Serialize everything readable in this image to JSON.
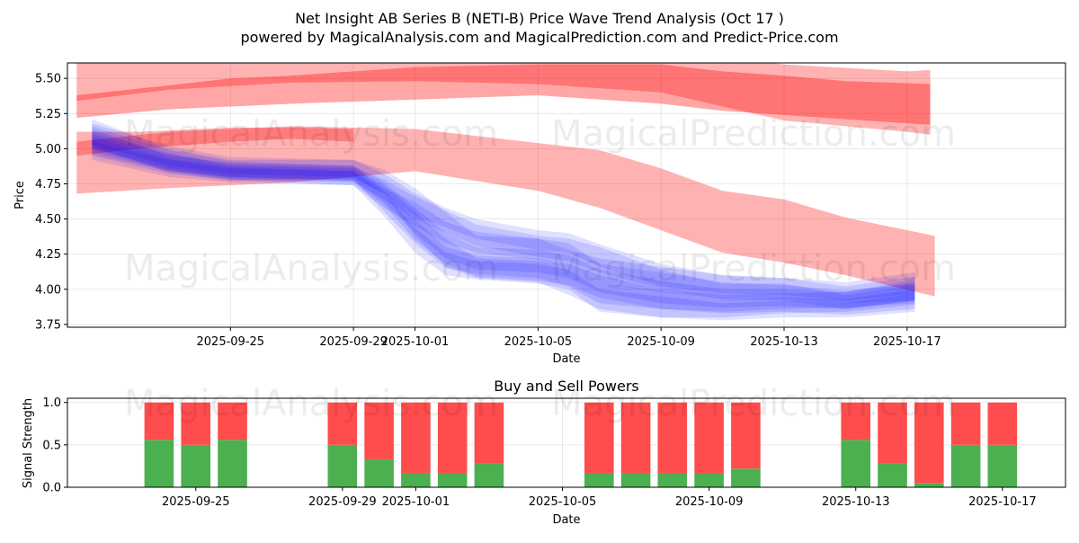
{
  "title_line1": "Net Insight AB Series B (NETI-B) Price Wave Trend Analysis (Oct 17 )",
  "title_line2": "powered by MagicalAnalysis.com and MagicalPrediction.com and Predict-Price.com",
  "watermarks": [
    "MagicalAnalysis.com",
    "MagicalPrediction.com"
  ],
  "colors": {
    "red_band": "#ff0000",
    "blue_band": "#0000ff",
    "buy": "#4caf50",
    "sell": "#ff4c4c"
  },
  "chart_data": [
    {
      "type": "area",
      "title": "",
      "xlabel": "Date",
      "ylabel": "Price",
      "x_day_range": [
        -11.3,
        21.15
      ],
      "ylim": [
        3.73,
        5.61
      ],
      "x_ticks": [
        {
          "day": -6,
          "label": "2025-09-25"
        },
        {
          "day": -2,
          "label": "2025-09-29"
        },
        {
          "day": 0,
          "label": "2025-10-01"
        },
        {
          "day": 4,
          "label": "2025-10-05"
        },
        {
          "day": 8,
          "label": "2025-10-09"
        },
        {
          "day": 12,
          "label": "2025-10-13"
        },
        {
          "day": 16,
          "label": "2025-10-17"
        }
      ],
      "y_ticks": [
        {
          "value": 3.75,
          "label": "3.75"
        },
        {
          "value": 4.0,
          "label": "4.00"
        },
        {
          "value": 4.25,
          "label": "4.25"
        },
        {
          "value": 4.5,
          "label": "4.50"
        },
        {
          "value": 4.75,
          "label": "4.75"
        },
        {
          "value": 5.0,
          "label": "5.00"
        },
        {
          "value": 5.25,
          "label": "5.25"
        },
        {
          "value": 5.5,
          "label": "5.50"
        }
      ],
      "red_bands": [
        {
          "opacity": 0.3,
          "points": [
            [
              -11.0,
              5.62,
              5.34
            ],
            [
              -8,
              5.61,
              5.42
            ],
            [
              -4,
              5.68,
              5.47
            ],
            [
              0,
              5.7,
              5.48
            ],
            [
              4,
              5.72,
              5.46
            ],
            [
              8,
              5.7,
              5.4
            ],
            [
              12,
              5.6,
              5.2
            ],
            [
              16,
              5.55,
              5.12
            ],
            [
              16.75,
              5.56,
              5.1
            ]
          ]
        },
        {
          "opacity": 0.3,
          "points": [
            [
              -11.0,
              5.05,
              4.68
            ],
            [
              -8,
              5.12,
              4.72
            ],
            [
              -4,
              5.16,
              4.76
            ],
            [
              0,
              5.14,
              4.84
            ],
            [
              4,
              5.04,
              4.7
            ],
            [
              6,
              4.99,
              4.58
            ],
            [
              8,
              4.86,
              4.42
            ],
            [
              10,
              4.7,
              4.26
            ],
            [
              12,
              4.64,
              4.19
            ],
            [
              14,
              4.51,
              4.1
            ],
            [
              16.9,
              4.38,
              3.95
            ]
          ]
        },
        {
          "opacity": 0.35,
          "points": [
            [
              -11.0,
              5.38,
              5.22
            ],
            [
              -8,
              5.45,
              5.28
            ],
            [
              -6,
              5.5,
              5.3
            ],
            [
              -4,
              5.52,
              5.32
            ],
            [
              0,
              5.58,
              5.35
            ],
            [
              4,
              5.6,
              5.38
            ],
            [
              8,
              5.6,
              5.32
            ],
            [
              10,
              5.55,
              5.27
            ],
            [
              12,
              5.52,
              5.24
            ],
            [
              14,
              5.48,
              5.21
            ],
            [
              16.75,
              5.46,
              5.17
            ]
          ]
        },
        {
          "opacity": 0.3,
          "points": [
            [
              -11.0,
              5.12,
              4.95
            ],
            [
              -9,
              5.12,
              5.0
            ],
            [
              -6,
              5.15,
              5.05
            ],
            [
              -4,
              5.15,
              5.07
            ],
            [
              -2,
              5.14,
              5.05
            ]
          ]
        }
      ],
      "blue_bands": [
        {
          "opacity": 0.12,
          "points": [
            [
              -10.5,
              5.21,
              5.02
            ],
            [
              -8,
              5.0,
              4.83
            ],
            [
              -6,
              4.92,
              4.77
            ],
            [
              -2,
              4.92,
              4.79
            ],
            [
              -1,
              4.85,
              4.68
            ],
            [
              0,
              4.72,
              4.38
            ],
            [
              1,
              4.55,
              4.16
            ],
            [
              2,
              4.38,
              4.08
            ],
            [
              4,
              4.36,
              4.05
            ],
            [
              5,
              4.28,
              3.96
            ],
            [
              6,
              4.22,
              3.86
            ],
            [
              8,
              4.16,
              3.8
            ],
            [
              10,
              4.1,
              3.8
            ],
            [
              12,
              4.08,
              3.83
            ],
            [
              14,
              4.05,
              3.84
            ],
            [
              16.25,
              4.12,
              3.89
            ]
          ]
        },
        {
          "opacity": 0.12,
          "points": [
            [
              -10.5,
              5.12,
              5.0
            ],
            [
              -8,
              4.97,
              4.85
            ],
            [
              -6,
              4.88,
              4.78
            ],
            [
              -2,
              4.86,
              4.76
            ],
            [
              -1,
              4.74,
              4.6
            ],
            [
              0,
              4.55,
              4.35
            ],
            [
              1,
              4.36,
              4.18
            ],
            [
              2,
              4.22,
              4.09
            ],
            [
              4,
              4.2,
              4.06
            ],
            [
              5,
              4.18,
              4.03
            ],
            [
              6,
              4.1,
              3.94
            ],
            [
              8,
              4.0,
              3.86
            ],
            [
              10,
              3.96,
              3.84
            ],
            [
              12,
              3.97,
              3.86
            ],
            [
              14,
              3.98,
              3.87
            ],
            [
              16.25,
              4.05,
              3.9
            ]
          ]
        },
        {
          "opacity": 0.12,
          "points": [
            [
              -10.5,
              5.08,
              4.95
            ],
            [
              -8,
              4.93,
              4.82
            ],
            [
              -6,
              4.87,
              4.78
            ],
            [
              -2,
              4.84,
              4.74
            ],
            [
              -1,
              4.72,
              4.58
            ],
            [
              0,
              4.62,
              4.45
            ],
            [
              1,
              4.48,
              4.33
            ],
            [
              2,
              4.41,
              4.26
            ],
            [
              4,
              4.36,
              4.21
            ],
            [
              5,
              4.33,
              4.18
            ],
            [
              6,
              4.18,
              4.04
            ],
            [
              8,
              4.12,
              3.98
            ],
            [
              10,
              4.05,
              3.93
            ],
            [
              12,
              4.03,
              3.93
            ],
            [
              14,
              3.99,
              3.9
            ],
            [
              16.25,
              4.04,
              3.92
            ]
          ]
        },
        {
          "opacity": 0.12,
          "points": [
            [
              -10.5,
              5.16,
              5.0
            ],
            [
              -8,
              4.99,
              4.86
            ],
            [
              -6,
              4.91,
              4.8
            ],
            [
              -2,
              4.88,
              4.77
            ],
            [
              -1,
              4.76,
              4.62
            ],
            [
              0,
              4.58,
              4.4
            ],
            [
              1,
              4.4,
              4.22
            ],
            [
              2,
              4.3,
              4.14
            ],
            [
              4,
              4.28,
              4.12
            ],
            [
              5,
              4.24,
              4.08
            ],
            [
              6,
              4.14,
              3.98
            ],
            [
              8,
              4.06,
              3.9
            ],
            [
              10,
              4.0,
              3.87
            ],
            [
              12,
              4.0,
              3.88
            ],
            [
              14,
              3.98,
              3.86
            ],
            [
              16.25,
              4.07,
              3.92
            ]
          ]
        },
        {
          "opacity": 0.12,
          "points": [
            [
              -10.5,
              5.1,
              4.96
            ],
            [
              -8,
              4.96,
              4.84
            ],
            [
              -6,
              4.89,
              4.79
            ],
            [
              -2,
              4.87,
              4.77
            ],
            [
              -1,
              4.78,
              4.64
            ],
            [
              0,
              4.66,
              4.5
            ],
            [
              1,
              4.56,
              4.4
            ],
            [
              2,
              4.46,
              4.31
            ],
            [
              4,
              4.38,
              4.23
            ],
            [
              5,
              4.36,
              4.2
            ],
            [
              6,
              4.3,
              4.12
            ],
            [
              8,
              4.14,
              4.0
            ],
            [
              10,
              4.04,
              3.92
            ],
            [
              12,
              4.04,
              3.92
            ],
            [
              14,
              3.96,
              3.86
            ],
            [
              16.25,
              4.03,
              3.92
            ]
          ]
        },
        {
          "opacity": 0.12,
          "points": [
            [
              -10.5,
              5.14,
              4.98
            ],
            [
              -8,
              4.95,
              4.84
            ],
            [
              -6,
              4.9,
              4.8
            ],
            [
              -2,
              4.88,
              4.78
            ],
            [
              -1,
              4.7,
              4.55
            ],
            [
              0,
              4.5,
              4.33
            ],
            [
              1,
              4.3,
              4.15
            ],
            [
              2,
              4.24,
              4.11
            ],
            [
              4,
              4.22,
              4.08
            ],
            [
              5,
              4.18,
              4.02
            ],
            [
              6,
              4.04,
              3.9
            ],
            [
              8,
              3.99,
              3.86
            ],
            [
              10,
              3.92,
              3.83
            ],
            [
              12,
              3.94,
              3.84
            ],
            [
              14,
              3.93,
              3.82
            ],
            [
              16.25,
              4.0,
              3.86
            ]
          ]
        },
        {
          "opacity": 0.12,
          "points": [
            [
              -10.5,
              5.18,
              5.03
            ],
            [
              -8,
              5.02,
              4.88
            ],
            [
              -6,
              4.94,
              4.82
            ],
            [
              -2,
              4.92,
              4.8
            ],
            [
              -1,
              4.82,
              4.68
            ],
            [
              0,
              4.68,
              4.52
            ],
            [
              1,
              4.58,
              4.44
            ],
            [
              2,
              4.5,
              4.36
            ],
            [
              4,
              4.42,
              4.28
            ],
            [
              5,
              4.4,
              4.26
            ],
            [
              6,
              4.32,
              4.16
            ],
            [
              8,
              4.18,
              4.02
            ],
            [
              10,
              4.1,
              3.97
            ],
            [
              12,
              4.08,
              3.96
            ],
            [
              14,
              4.02,
              3.92
            ],
            [
              16.25,
              4.09,
              3.97
            ]
          ]
        },
        {
          "opacity": 0.12,
          "points": [
            [
              -10.5,
              5.05,
              4.92
            ],
            [
              -8,
              4.92,
              4.8
            ],
            [
              -6,
              4.86,
              4.76
            ],
            [
              -2,
              4.84,
              4.74
            ],
            [
              -1,
              4.68,
              4.52
            ],
            [
              0,
              4.44,
              4.26
            ],
            [
              1,
              4.26,
              4.1
            ],
            [
              2,
              4.2,
              4.07
            ],
            [
              4,
              4.18,
              4.04
            ],
            [
              5,
              4.14,
              4.0
            ],
            [
              6,
              4.0,
              3.84
            ],
            [
              8,
              3.95,
              3.8
            ],
            [
              10,
              3.9,
              3.78
            ],
            [
              12,
              3.92,
              3.8
            ],
            [
              14,
              3.9,
              3.8
            ],
            [
              16.25,
              3.97,
              3.84
            ]
          ]
        }
      ]
    },
    {
      "type": "bar",
      "title": "Buy and Sell Powers",
      "xlabel": "Date",
      "ylabel": "Signal Strength",
      "ylim": [
        0.0,
        1.05
      ],
      "y_ticks": [
        {
          "value": 0.0,
          "label": "0.0"
        },
        {
          "value": 0.5,
          "label": "0.5"
        },
        {
          "value": 1.0,
          "label": "1.0"
        }
      ],
      "x_ticks": [
        {
          "day": -6,
          "label": "2025-09-25"
        },
        {
          "day": -2,
          "label": "2025-09-29"
        },
        {
          "day": 0,
          "label": "2025-10-01"
        },
        {
          "day": 4,
          "label": "2025-10-05"
        },
        {
          "day": 8,
          "label": "2025-10-09"
        },
        {
          "day": 12,
          "label": "2025-10-13"
        },
        {
          "day": 16,
          "label": "2025-10-17"
        }
      ],
      "x_day_range": [
        -9.5,
        17.72
      ],
      "bars": [
        {
          "day": -7,
          "buy": 0.56,
          "sell": 0.44
        },
        {
          "day": -6,
          "buy": 0.5,
          "sell": 0.5
        },
        {
          "day": -5,
          "buy": 0.56,
          "sell": 0.44
        },
        {
          "day": -2,
          "buy": 0.5,
          "sell": 0.5
        },
        {
          "day": -1,
          "buy": 0.33,
          "sell": 0.67
        },
        {
          "day": 0,
          "buy": 0.17,
          "sell": 0.83
        },
        {
          "day": 1,
          "buy": 0.17,
          "sell": 0.83
        },
        {
          "day": 2,
          "buy": 0.28,
          "sell": 0.72
        },
        {
          "day": 5,
          "buy": 0.17,
          "sell": 0.83
        },
        {
          "day": 6,
          "buy": 0.17,
          "sell": 0.83
        },
        {
          "day": 7,
          "buy": 0.17,
          "sell": 0.83
        },
        {
          "day": 8,
          "buy": 0.17,
          "sell": 0.83
        },
        {
          "day": 9,
          "buy": 0.22,
          "sell": 0.78
        },
        {
          "day": 12,
          "buy": 0.56,
          "sell": 0.44
        },
        {
          "day": 13,
          "buy": 0.28,
          "sell": 0.72
        },
        {
          "day": 14,
          "buy": 0.05,
          "sell": 0.95
        },
        {
          "day": 15,
          "buy": 0.5,
          "sell": 0.5
        },
        {
          "day": 16,
          "buy": 0.5,
          "sell": 0.5
        }
      ]
    }
  ]
}
